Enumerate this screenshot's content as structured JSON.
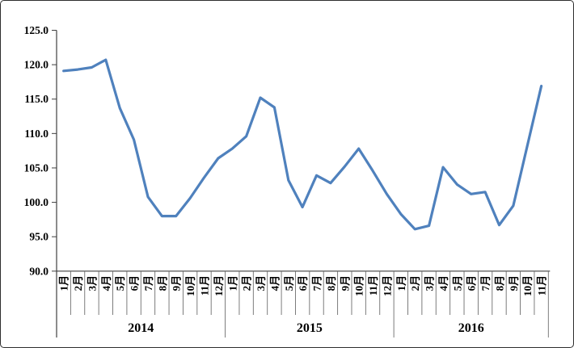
{
  "chart_data": {
    "type": "line",
    "title": "",
    "xlabel": "",
    "ylabel": "",
    "ylim": [
      90.0,
      125.0
    ],
    "ytick_step": 5.0,
    "ytick_labels": [
      "125.0",
      "120.0",
      "115.0",
      "110.0",
      "105.0",
      "100.0",
      "95.0",
      "90.0"
    ],
    "grid": false,
    "legend_position": "none",
    "line_color": "#4F81BD",
    "axis_color": "#3f3f3f",
    "divider_color": "#6e6e6e",
    "year_groups": [
      {
        "year": "2014",
        "months": [
          "1月",
          "2月",
          "3月",
          "4月",
          "5月",
          "6月",
          "7月",
          "8月",
          "9月",
          "10月",
          "11月",
          "12月"
        ],
        "values": [
          119.1,
          119.3,
          119.6,
          120.7,
          113.7,
          109.1,
          100.8,
          98.0,
          98.0,
          100.6,
          103.6,
          106.4
        ]
      },
      {
        "year": "2015",
        "months": [
          "1月",
          "2月",
          "3月",
          "4月",
          "5月",
          "6月",
          "7月",
          "8月",
          "9月",
          "10月",
          "11月",
          "12月"
        ],
        "values": [
          107.8,
          109.6,
          115.2,
          113.8,
          103.2,
          99.3,
          103.9,
          102.8,
          105.2,
          107.8,
          104.6,
          101.2
        ]
      },
      {
        "year": "2016",
        "months": [
          "1月",
          "2月",
          "3月",
          "4月",
          "5月",
          "6月",
          "7月",
          "8月",
          "9月",
          "10月",
          "11月"
        ],
        "values": [
          98.3,
          96.1,
          96.6,
          105.1,
          102.6,
          101.2,
          101.5,
          96.7,
          99.5,
          108.2,
          116.9
        ]
      }
    ]
  }
}
